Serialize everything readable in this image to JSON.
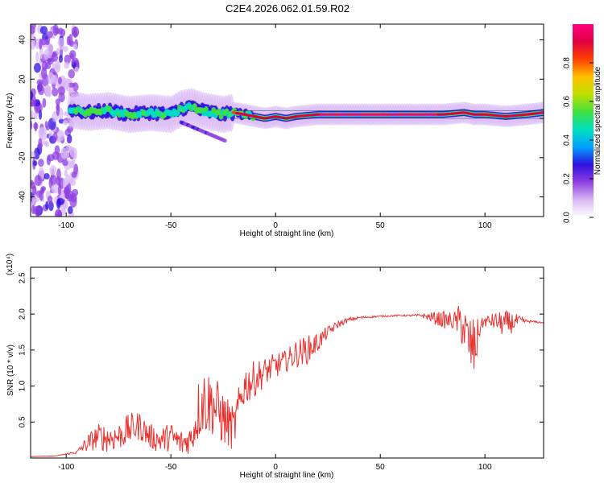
{
  "title": "C2E4.2026.062.01.59.R02",
  "chart_data": [
    {
      "type": "heatmap",
      "name": "spectrogram",
      "xlabel": "Height of straight line (km)",
      "ylabel": "Frequency (Hz)",
      "xlim": [
        -117,
        128
      ],
      "ylim": [
        -50,
        48
      ],
      "xticks": [
        -100,
        -50,
        0,
        50,
        100
      ],
      "xtick_labels": [
        "-100",
        "-50",
        "0",
        "50",
        "100"
      ],
      "yticks": [
        -40,
        -20,
        0,
        20,
        40
      ],
      "ytick_labels": [
        "-40",
        "-20",
        "0",
        "20",
        "40"
      ],
      "colorbar": {
        "label": "Normalized spectral amplitude",
        "range": [
          0,
          1
        ],
        "ticks": [
          0.0,
          0.2,
          0.4,
          0.6,
          0.8
        ],
        "tick_labels": [
          "0.0",
          "0.2",
          "0.4",
          "0.6",
          "0.8"
        ],
        "colors": [
          "#ffffff",
          "#d9b8f5",
          "#9040e0",
          "#3010e0",
          "#00a0ff",
          "#00e0c0",
          "#40e040",
          "#c0e000",
          "#ffc000",
          "#ff4000",
          "#e00040",
          "#ff0080"
        ]
      },
      "ridge": {
        "x": [
          -100,
          -90,
          -80,
          -70,
          -60,
          -50,
          -45,
          -40,
          -35,
          -30,
          -25,
          -20,
          -15,
          -10,
          -5,
          0,
          5,
          10,
          20,
          30,
          40,
          50,
          60,
          70,
          80,
          90,
          95,
          100,
          110,
          120,
          128
        ],
        "freq": [
          5,
          3,
          4,
          2,
          3,
          2,
          5,
          6,
          4,
          3,
          2,
          3,
          2,
          1,
          0,
          1,
          0,
          1,
          2,
          2,
          2,
          2,
          2,
          2,
          2,
          3,
          2,
          2,
          1,
          2,
          3
        ],
        "amplitude": [
          0.45,
          0.5,
          0.5,
          0.5,
          0.55,
          0.55,
          0.6,
          0.6,
          0.65,
          0.7,
          0.75,
          0.85,
          0.9,
          0.9,
          0.92,
          0.95,
          0.95,
          0.95,
          0.95,
          0.97,
          0.97,
          0.97,
          0.97,
          0.97,
          0.95,
          0.9,
          0.9,
          0.92,
          0.9,
          0.92,
          0.9
        ]
      }
    },
    {
      "type": "line",
      "name": "snr",
      "xlabel": "Height of straight line (km)",
      "ylabel": "SNR (10 * v/v)",
      "scale_label": "(x10⁴)",
      "color": "#e8312e",
      "xlim": [
        -117,
        128
      ],
      "ylim": [
        0,
        2.65
      ],
      "xticks": [
        -100,
        -50,
        0,
        50,
        100
      ],
      "xtick_labels": [
        "-100",
        "-50",
        "0",
        "50",
        "100"
      ],
      "yticks": [
        0.5,
        1.0,
        1.5,
        2.0,
        2.5
      ],
      "ytick_labels": [
        "0.5",
        "1.0",
        "1.5",
        "2.0",
        "2.5"
      ],
      "x": [
        -117,
        -105,
        -95,
        -90,
        -85,
        -80,
        -75,
        -70,
        -65,
        -60,
        -55,
        -50,
        -45,
        -40,
        -37,
        -35,
        -30,
        -25,
        -20,
        -15,
        -10,
        -5,
        0,
        5,
        10,
        15,
        20,
        25,
        30,
        35,
        40,
        50,
        60,
        70,
        75,
        80,
        85,
        88,
        90,
        92,
        95,
        98,
        100,
        105,
        110,
        115,
        120,
        128
      ],
      "y": [
        0.02,
        0.03,
        0.08,
        0.2,
        0.3,
        0.28,
        0.3,
        0.4,
        0.45,
        0.3,
        0.25,
        0.3,
        0.2,
        0.28,
        0.65,
        0.8,
        0.75,
        0.55,
        0.4,
        1.0,
        1.1,
        1.2,
        1.28,
        1.35,
        1.45,
        1.5,
        1.6,
        1.75,
        1.86,
        1.92,
        1.95,
        1.97,
        1.98,
        1.98,
        1.95,
        1.92,
        1.9,
        1.9,
        1.8,
        1.6,
        1.5,
        1.85,
        1.9,
        1.9,
        1.85,
        1.9,
        1.9,
        1.88
      ],
      "jitter": [
        0.0,
        0.0,
        0.02,
        0.12,
        0.18,
        0.2,
        0.2,
        0.22,
        0.2,
        0.18,
        0.18,
        0.2,
        0.2,
        0.2,
        0.45,
        0.5,
        0.45,
        0.4,
        0.3,
        0.3,
        0.25,
        0.2,
        0.18,
        0.15,
        0.2,
        0.2,
        0.15,
        0.08,
        0.05,
        0.03,
        0.02,
        0.01,
        0.01,
        0.02,
        0.08,
        0.12,
        0.12,
        0.25,
        0.35,
        0.4,
        0.45,
        0.08,
        0.08,
        0.12,
        0.2,
        0.1,
        0.02,
        0.01
      ]
    }
  ]
}
